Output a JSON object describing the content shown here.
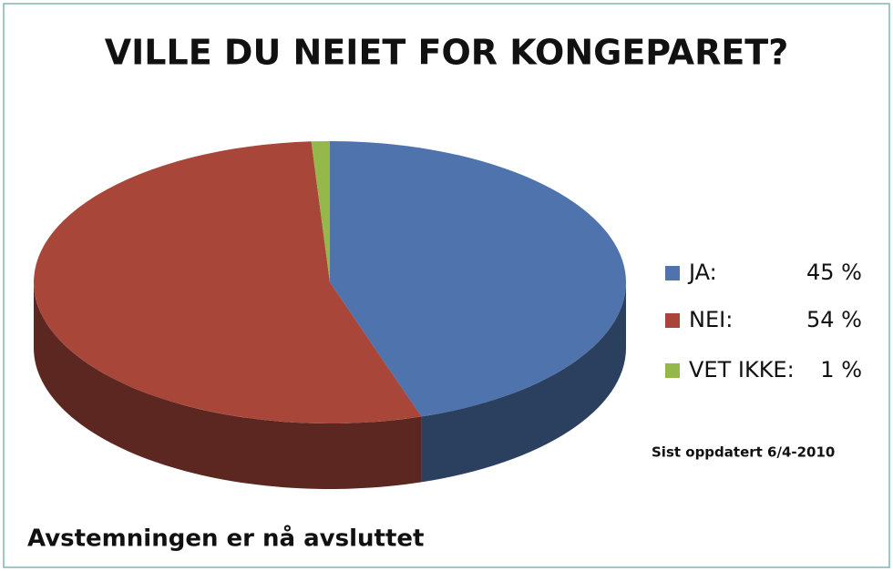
{
  "chart_data": {
    "type": "pie",
    "title": "VILLE DU NEIET FOR KONGEPARET?",
    "categories": [
      "JA:",
      "NEI:",
      "VET IKKE:"
    ],
    "values": [
      45,
      54,
      1
    ],
    "value_labels": [
      "45 %",
      "54 %",
      "1 %"
    ],
    "colors": [
      "#4f73ad",
      "#a8463a",
      "#94b84a"
    ],
    "legend": "right",
    "annotations": [
      "Sist oppdatert 6/4-2010",
      "Avstemningen er nå avsluttet"
    ]
  }
}
